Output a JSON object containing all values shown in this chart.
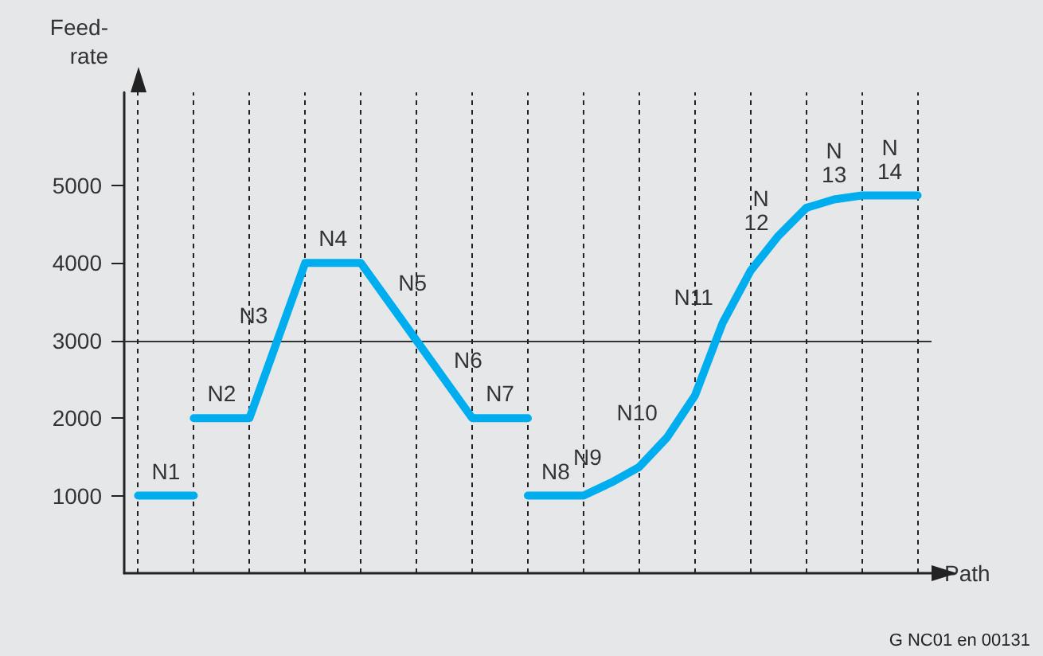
{
  "chart_data": {
    "type": "line",
    "ylabel": "Feed-\nrate",
    "xlabel": "Path",
    "categories": [
      null,
      null,
      null,
      null,
      null,
      null,
      null,
      null,
      null,
      null,
      null,
      null,
      null,
      null,
      null,
      null,
      null,
      null,
      null,
      null,
      null,
      null,
      null,
      null,
      null,
      null,
      null,
      null,
      null
    ],
    "ylim": [
      0,
      6200
    ],
    "yticks": [
      1000,
      2000,
      3000,
      4000,
      5000
    ],
    "tick_labels": "y",
    "grid": "x",
    "marker": "none",
    "line_style": "solid",
    "series": [
      {
        "color": "#00aeef",
        "values": [
          1000,
          1000,
          1000,
          null,
          null,
          null,
          null,
          null,
          null,
          null,
          null,
          null,
          null,
          null,
          null,
          null,
          null,
          null,
          null,
          null,
          null,
          null,
          null,
          null,
          null,
          null,
          null,
          null,
          null
        ],
        "value_labels": [
          null,
          "N1",
          null,
          null,
          null,
          null,
          null,
          null,
          null,
          null,
          null,
          null,
          null,
          null,
          null,
          null,
          null,
          null,
          null,
          null,
          null,
          null,
          null,
          null,
          null,
          null,
          null,
          null,
          null
        ]
      },
      {
        "color": "#00aeef",
        "values": [
          null,
          null,
          2000,
          2000,
          2000,
          3000,
          4000,
          4000,
          4000,
          3500,
          3000,
          2500,
          2000,
          2000,
          2000,
          null,
          null,
          null,
          null,
          null,
          null,
          null,
          null,
          null,
          null,
          null,
          null,
          null,
          null
        ],
        "value_labels": [
          null,
          null,
          null,
          "N2",
          null,
          "N3",
          null,
          "N4",
          null,
          "N5",
          null,
          "N6",
          null,
          "N7",
          null,
          null,
          null,
          null,
          null,
          null,
          null,
          null,
          null,
          null,
          null,
          null,
          null,
          null,
          null
        ]
      },
      {
        "color": "#00aeef",
        "values": [
          null,
          null,
          null,
          null,
          null,
          null,
          null,
          null,
          null,
          null,
          null,
          null,
          null,
          null,
          1000,
          1000,
          1000,
          1170,
          1370,
          1750,
          2290,
          3230,
          3900,
          4350,
          4710,
          4820,
          4870,
          4870,
          4870
        ],
        "value_labels": [
          null,
          null,
          null,
          null,
          null,
          null,
          null,
          null,
          null,
          null,
          null,
          null,
          null,
          null,
          null,
          "N8",
          null,
          "N9",
          null,
          "N10",
          null,
          "N11",
          null,
          "N\n12",
          null,
          "N\n13",
          null,
          "N\n14",
          null
        ]
      }
    ],
    "ref_lines": [
      {
        "axis": "y",
        "value": 3000,
        "color": "#333333",
        "line_style": "solid"
      }
    ],
    "annotations": [
      "G NC01 en 00131"
    ]
  }
}
